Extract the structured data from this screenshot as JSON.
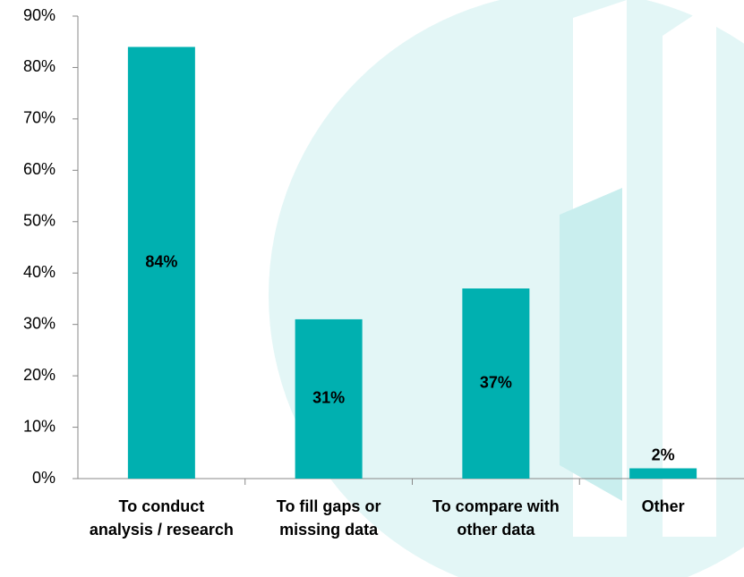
{
  "chart_data": {
    "type": "bar",
    "categories": [
      "To conduct analysis / research",
      "To fill gaps or missing data",
      "To compare with other data",
      "Other"
    ],
    "values": [
      84,
      31,
      37,
      2
    ],
    "value_labels": [
      "84%",
      "31%",
      "37%",
      "2%"
    ],
    "color": "#00b0b0",
    "ylim": [
      0,
      90
    ],
    "yticks": [
      {
        "value": 0,
        "label": "0%"
      },
      {
        "value": 10,
        "label": "10%"
      },
      {
        "value": 20,
        "label": "20%"
      },
      {
        "value": 30,
        "label": "30%"
      },
      {
        "value": 40,
        "label": "40%"
      },
      {
        "value": 50,
        "label": "50%"
      },
      {
        "value": 60,
        "label": "60%"
      },
      {
        "value": 70,
        "label": "70%"
      },
      {
        "value": 80,
        "label": "80%"
      },
      {
        "value": 90,
        "label": "90%"
      }
    ],
    "grid": false
  }
}
